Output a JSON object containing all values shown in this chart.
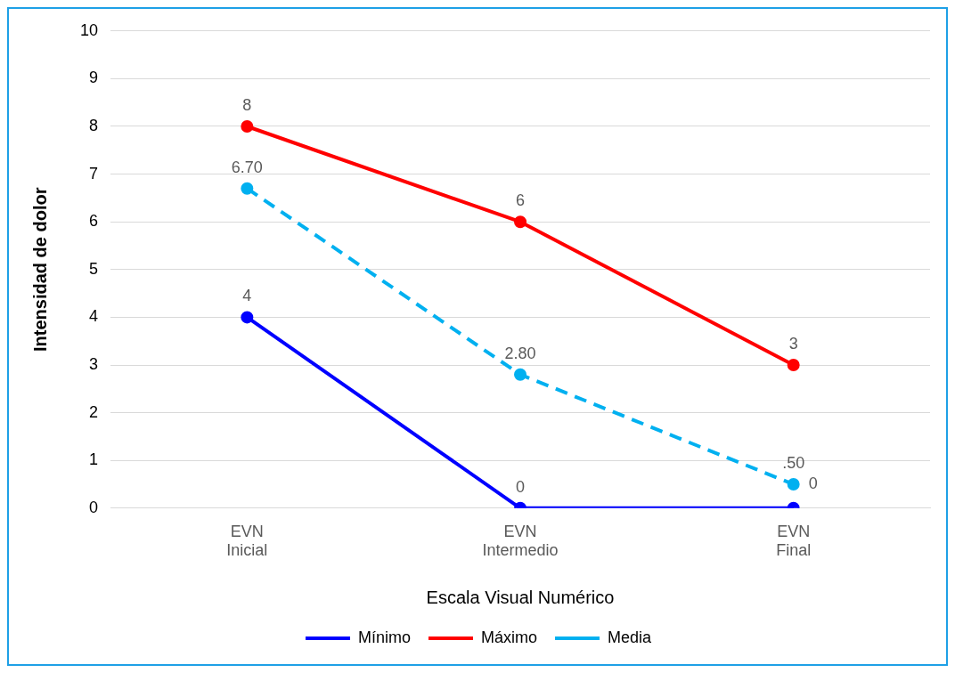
{
  "chart_data": {
    "type": "line",
    "xlabel": "Escala Visual Numérico",
    "ylabel": "Intensidad de dolor",
    "categories": [
      "EVN Inicial",
      "EVN Intermedio",
      "EVN Final"
    ],
    "series": [
      {
        "name": "Mínimo",
        "color": "#0000ff",
        "values": [
          4,
          0,
          0
        ],
        "value_labels": [
          "4",
          "0",
          "0"
        ]
      },
      {
        "name": "Máximo",
        "color": "#ff0000",
        "values": [
          8,
          6,
          3
        ],
        "value_labels": [
          "8",
          "6",
          "3"
        ]
      },
      {
        "name": "Media",
        "color": "#00b0f0",
        "values": [
          6.7,
          2.8,
          0.5
        ],
        "value_labels": [
          "6.70",
          "2.80",
          ".50"
        ],
        "line_style": "dashed"
      }
    ],
    "ylim": [
      0,
      10
    ],
    "yticks": [
      0,
      1,
      2,
      3,
      4,
      5,
      6,
      7,
      8,
      9,
      10
    ],
    "grid": "y",
    "legend": "bottom",
    "marker": "circle"
  }
}
